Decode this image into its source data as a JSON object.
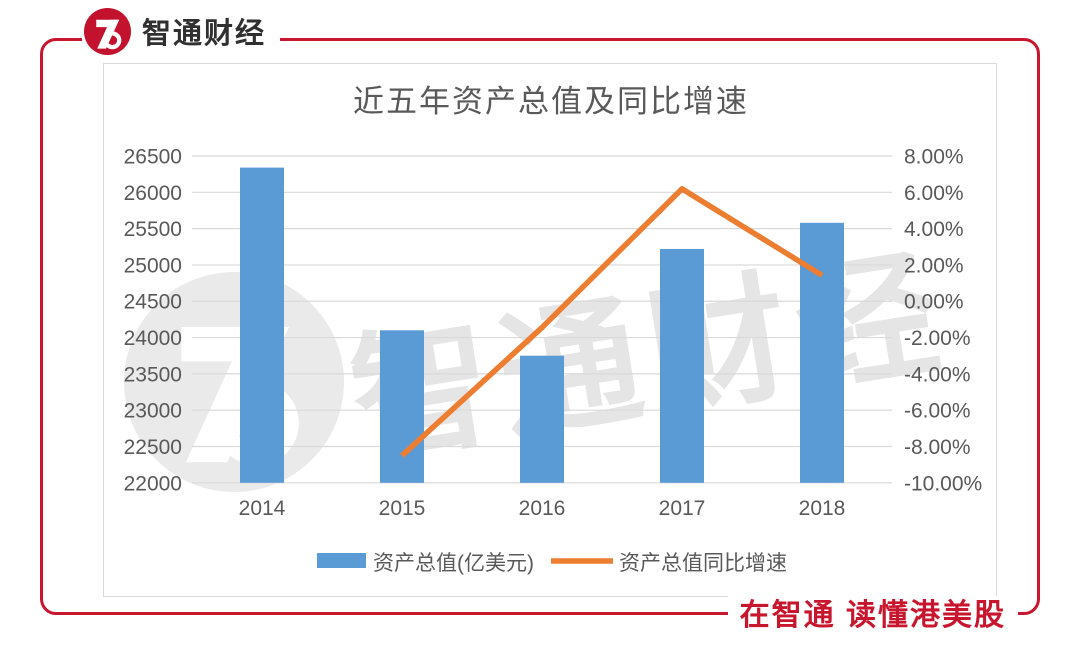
{
  "brand": {
    "name": "智通财经",
    "slogan": "在智通 读懂港美股",
    "logo_icon": "zhitong-z6-mark",
    "red": "#C9162F",
    "logo_red": "#C3122D"
  },
  "chart_data": {
    "type": "combo-bar-line",
    "title": "近五年资产总值及同比增速",
    "title_color": "#595959",
    "categories": [
      "2014",
      "2015",
      "2016",
      "2017",
      "2018"
    ],
    "series": [
      {
        "name": "资产总值(亿美元)",
        "type": "bar",
        "axis": "left",
        "color": "#5B9BD5",
        "values": [
          26340,
          24100,
          23750,
          25220,
          25580
        ]
      },
      {
        "name": "资产总值同比增速",
        "type": "line",
        "axis": "right",
        "unit": "%",
        "color": "#ED7D31",
        "values": [
          null,
          -8.5,
          -1.45,
          6.19,
          1.43
        ]
      }
    ],
    "left_axis": {
      "min": 22000,
      "max": 26500,
      "step": 500,
      "ticks": [
        "26500",
        "26000",
        "25500",
        "25000",
        "24500",
        "24000",
        "23500",
        "23000",
        "22500",
        "22000"
      ]
    },
    "right_axis": {
      "min": -10,
      "max": 8,
      "step": 2,
      "ticks": [
        "8.00%",
        "6.00%",
        "4.00%",
        "2.00%",
        "0.00%",
        "-2.00%",
        "-4.00%",
        "-6.00%",
        "-8.00%",
        "-10.00%"
      ]
    },
    "grid": true,
    "gridline_color": "#D9D9D9",
    "axis_label_color": "#595959",
    "legend_position": "bottom",
    "watermark_text": "智通财经",
    "watermark_color": "#E5E5E5",
    "watermark_circle_color": "#EAEAEA"
  }
}
